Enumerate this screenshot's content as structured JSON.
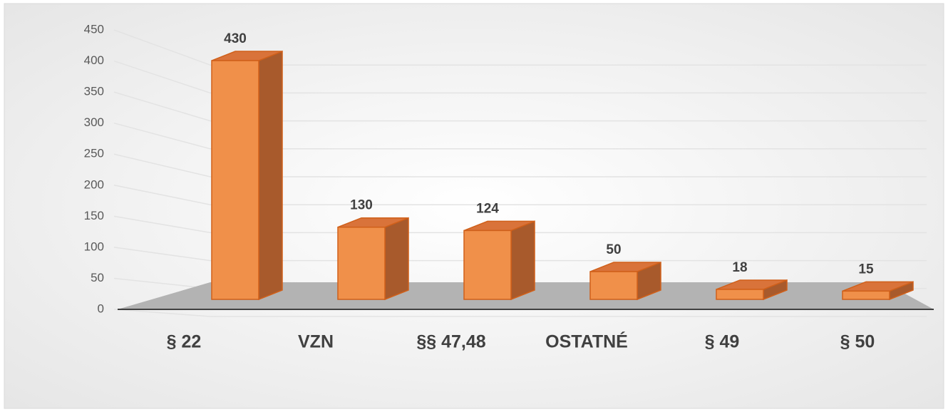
{
  "chart_data": {
    "type": "bar3d",
    "categories": [
      "§ 22",
      "VZN",
      "§§ 47,48",
      "OSTATNÉ",
      "§ 49",
      "§ 50"
    ],
    "values": [
      430,
      130,
      124,
      50,
      18,
      15
    ],
    "color": "#f0904a",
    "ylim": [
      0,
      450
    ],
    "yticks": [
      0,
      50,
      100,
      150,
      200,
      250,
      300,
      350,
      400,
      450
    ],
    "grid": true
  }
}
